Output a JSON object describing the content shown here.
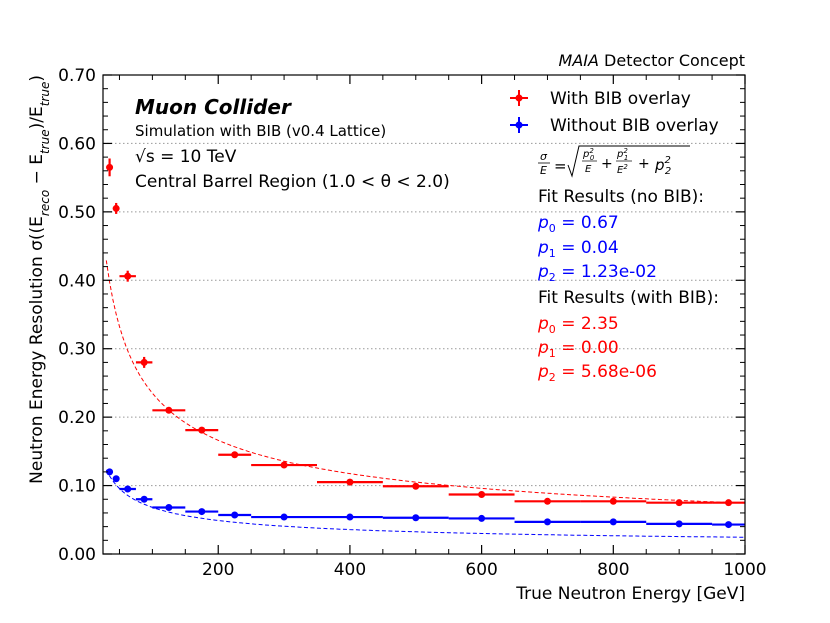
{
  "chart_data": {
    "type": "scatter",
    "header_right": {
      "italic": "MAIA",
      "rest": " Detector Concept"
    },
    "xlabel": "True Neutron Energy [GeV]",
    "ylabel": "Neutron Energy Resolution σ((E_reco − E_true)/E_true)",
    "xlim": [
      25,
      1000
    ],
    "ylim": [
      0,
      0.7
    ],
    "xticks": [
      200,
      400,
      600,
      800,
      1000
    ],
    "xtick_labels": [
      "200",
      "400",
      "600",
      "800",
      "1000"
    ],
    "yticks": [
      0,
      0.1,
      0.2,
      0.3,
      0.4,
      0.5,
      0.6,
      0.7
    ],
    "ytick_labels": [
      "0.00",
      "0.10",
      "0.20",
      "0.30",
      "0.40",
      "0.50",
      "0.60",
      "0.70"
    ],
    "grid_y": true,
    "annotations": {
      "title": "Muon Collider",
      "subtitle": "Simulation with BIB (v0.4 Lattice)",
      "energy": "√s = 10 TeV",
      "region": "Central Barrel Region (1.0 < θ < 2.0)"
    },
    "legend": {
      "placement": "top-right",
      "entries": [
        "With BIB overlay",
        "Without BIB overlay"
      ]
    },
    "formula": "σ/E = √(p0²/E + p1²/E² + p2²)",
    "fit_results": {
      "no_bib": {
        "title": "Fit Results (no BIB):",
        "p0": "0.67",
        "p1": "0.04",
        "p2": "1.23e-02"
      },
      "with_bib": {
        "title": "Fit Results (with BIB):",
        "p0": "2.35",
        "p1": "0.00",
        "p2": "5.68e-06"
      }
    },
    "series": [
      {
        "name": "With BIB overlay",
        "color": "#ff0000",
        "points": [
          {
            "x": 35,
            "xerr": 5,
            "y": 0.565,
            "yerr": 0.013
          },
          {
            "x": 45,
            "xerr": 5,
            "y": 0.505,
            "yerr": 0.008
          },
          {
            "x": 62.5,
            "xerr": 12.5,
            "y": 0.406,
            "yerr": 0.008
          },
          {
            "x": 87.5,
            "xerr": 12.5,
            "y": 0.28,
            "yerr": 0.008
          },
          {
            "x": 125,
            "xerr": 25,
            "y": 0.21,
            "yerr": 0.004
          },
          {
            "x": 175,
            "xerr": 25,
            "y": 0.181,
            "yerr": 0.003
          },
          {
            "x": 225,
            "xerr": 25,
            "y": 0.145,
            "yerr": 0.003
          },
          {
            "x": 300,
            "xerr": 50,
            "y": 0.13,
            "yerr": 0.003
          },
          {
            "x": 400,
            "xerr": 50,
            "y": 0.105,
            "yerr": 0.002
          },
          {
            "x": 500,
            "xerr": 50,
            "y": 0.099,
            "yerr": 0.002
          },
          {
            "x": 600,
            "xerr": 50,
            "y": 0.087,
            "yerr": 0.002
          },
          {
            "x": 700,
            "xerr": 50,
            "y": 0.077,
            "yerr": 0.002
          },
          {
            "x": 800,
            "xerr": 50,
            "y": 0.077,
            "yerr": 0.002
          },
          {
            "x": 900,
            "xerr": 50,
            "y": 0.075,
            "yerr": 0.002
          },
          {
            "x": 975,
            "xerr": 25,
            "y": 0.075,
            "yerr": 0.002
          }
        ]
      },
      {
        "name": "Without BIB overlay",
        "color": "#0000ff",
        "points": [
          {
            "x": 35,
            "xerr": 5,
            "y": 0.12,
            "yerr": 0.002
          },
          {
            "x": 45,
            "xerr": 5,
            "y": 0.11,
            "yerr": 0.002
          },
          {
            "x": 62.5,
            "xerr": 12.5,
            "y": 0.095,
            "yerr": 0.002
          },
          {
            "x": 87.5,
            "xerr": 12.5,
            "y": 0.08,
            "yerr": 0.002
          },
          {
            "x": 125,
            "xerr": 25,
            "y": 0.068,
            "yerr": 0.001
          },
          {
            "x": 175,
            "xerr": 25,
            "y": 0.062,
            "yerr": 0.001
          },
          {
            "x": 225,
            "xerr": 25,
            "y": 0.057,
            "yerr": 0.001
          },
          {
            "x": 300,
            "xerr": 50,
            "y": 0.054,
            "yerr": 0.001
          },
          {
            "x": 400,
            "xerr": 50,
            "y": 0.054,
            "yerr": 0.001
          },
          {
            "x": 500,
            "xerr": 50,
            "y": 0.053,
            "yerr": 0.001
          },
          {
            "x": 600,
            "xerr": 50,
            "y": 0.052,
            "yerr": 0.001
          },
          {
            "x": 700,
            "xerr": 50,
            "y": 0.047,
            "yerr": 0.001
          },
          {
            "x": 800,
            "xerr": 50,
            "y": 0.047,
            "yerr": 0.001
          },
          {
            "x": 900,
            "xerr": 50,
            "y": 0.044,
            "yerr": 0.001
          },
          {
            "x": 975,
            "xerr": 25,
            "y": 0.043,
            "yerr": 0.001
          }
        ]
      }
    ],
    "fits": [
      {
        "name": "fit-with-bib",
        "color": "#ff0000",
        "p0": 2.35,
        "p1": 0.0,
        "p2": 5.68e-06
      },
      {
        "name": "fit-no-bib",
        "color": "#0000ff",
        "p0": 0.67,
        "p1": 0.04,
        "p2": 0.0123
      }
    ]
  }
}
